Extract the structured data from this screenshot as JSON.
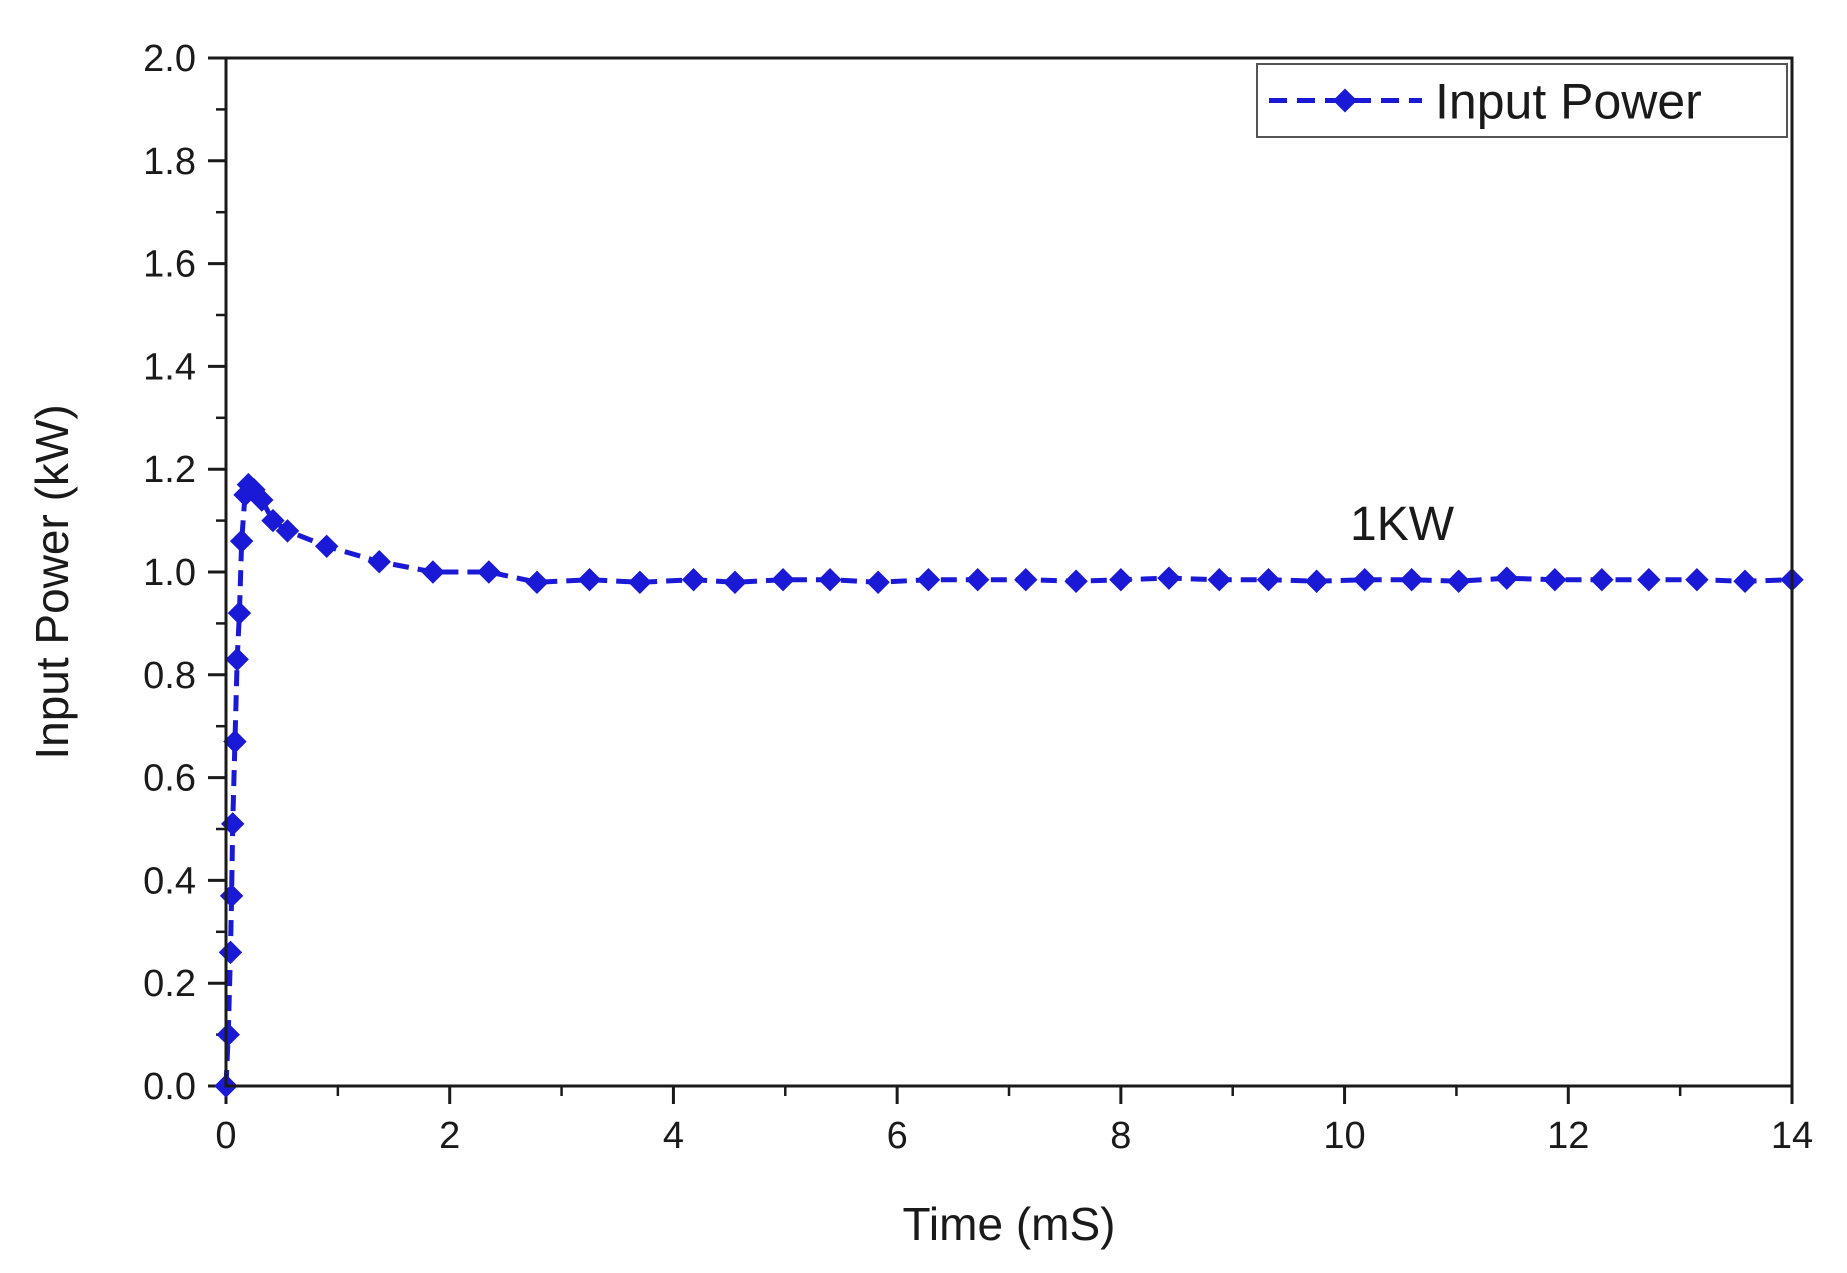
{
  "chart_data": {
    "type": "line",
    "title": "",
    "xlabel": "Time (mS)",
    "ylabel": "Input Power (kW)",
    "xlim": [
      0,
      14
    ],
    "ylim": [
      0,
      2.0
    ],
    "x_ticks": [
      "0",
      "2",
      "4",
      "6",
      "8",
      "10",
      "12",
      "14"
    ],
    "y_ticks": [
      "0.0",
      "0.2",
      "0.4",
      "0.6",
      "0.8",
      "1.0",
      "1.2",
      "1.4",
      "1.6",
      "1.8",
      "2.0"
    ],
    "grid": false,
    "legend_position": "top-right",
    "annotation": "1KW",
    "colors": {
      "series": "#1a1ad6",
      "axis": "#1a1a1a"
    },
    "series": [
      {
        "name": "Input Power",
        "line_style": "dashed",
        "marker": "diamond",
        "x": [
          0.0,
          0.02,
          0.04,
          0.05,
          0.06,
          0.08,
          0.1,
          0.12,
          0.14,
          0.17,
          0.2,
          0.25,
          0.32,
          0.42,
          0.55,
          0.9,
          1.37,
          1.85,
          2.35,
          2.78,
          3.25,
          3.7,
          4.18,
          4.55,
          4.98,
          5.4,
          5.83,
          6.28,
          6.72,
          7.15,
          7.6,
          8.0,
          8.43,
          8.88,
          9.32,
          9.75,
          10.18,
          10.6,
          11.02,
          11.45,
          11.88,
          12.3,
          12.72,
          13.15,
          13.58,
          14.0
        ],
        "values": [
          0.0,
          0.1,
          0.26,
          0.37,
          0.51,
          0.67,
          0.83,
          0.92,
          1.06,
          1.15,
          1.17,
          1.16,
          1.14,
          1.1,
          1.08,
          1.05,
          1.02,
          1.0,
          1.0,
          0.98,
          0.985,
          0.98,
          0.985,
          0.98,
          0.985,
          0.985,
          0.98,
          0.985,
          0.985,
          0.985,
          0.982,
          0.985,
          0.988,
          0.985,
          0.985,
          0.982,
          0.985,
          0.985,
          0.982,
          0.988,
          0.985,
          0.985,
          0.985,
          0.985,
          0.982,
          0.985
        ]
      }
    ]
  }
}
